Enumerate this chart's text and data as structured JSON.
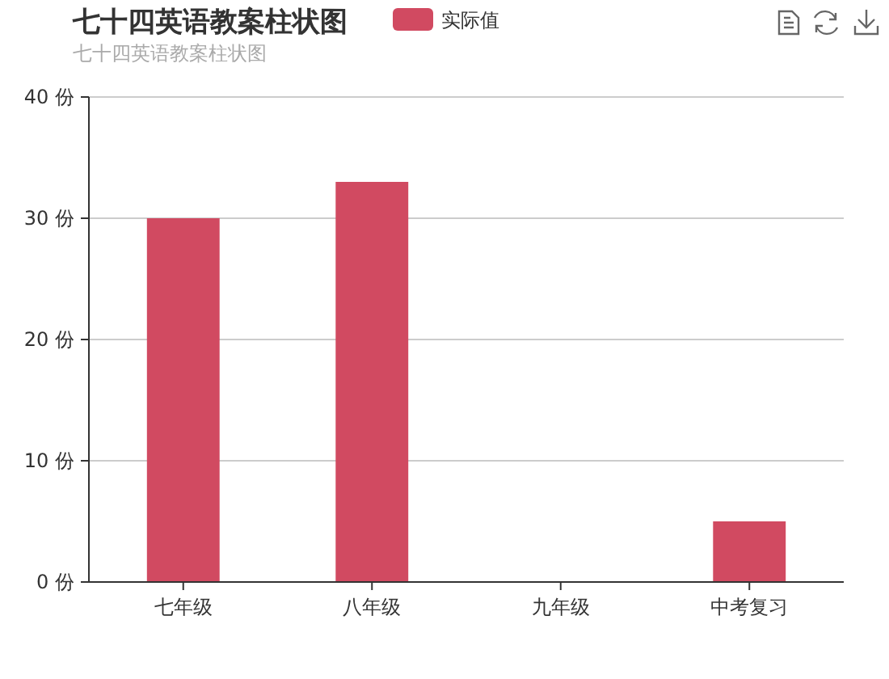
{
  "chart_data": {
    "type": "bar",
    "title": "七十四英语教案柱状图",
    "subtitle": "七十四英语教案柱状图",
    "categories": [
      "七年级",
      "八年级",
      "九年级",
      "中考复习"
    ],
    "series": [
      {
        "name": "实际值",
        "color": "#d14a61",
        "values": [
          30,
          33,
          0,
          5
        ]
      }
    ],
    "ylim": [
      0,
      40
    ],
    "yticks": [
      {
        "value": 0,
        "label": "0 份"
      },
      {
        "value": 10,
        "label": "10 份"
      },
      {
        "value": 20,
        "label": "20 份"
      },
      {
        "value": 30,
        "label": "30 份"
      },
      {
        "value": 40,
        "label": "40 份"
      }
    ],
    "grid": "y",
    "legend": "top"
  }
}
